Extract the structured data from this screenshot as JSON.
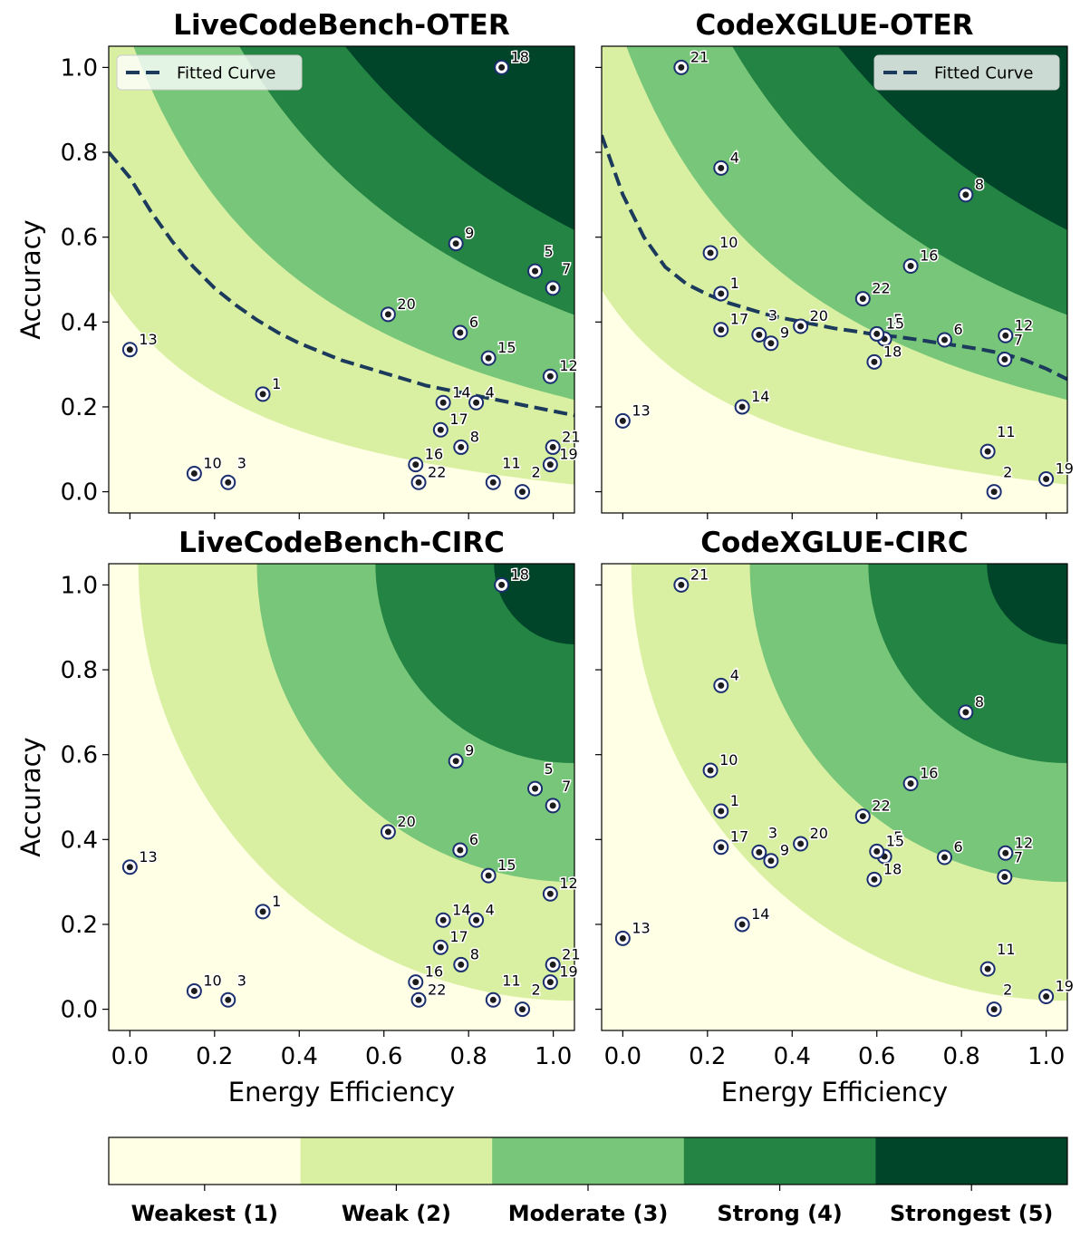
{
  "colors": {
    "levels": [
      "#ffffe5",
      "#d9f0a3",
      "#78c679",
      "#238443",
      "#004529"
    ],
    "curve": "#1b3a5c",
    "point_edge": "#1b2f6e",
    "point_fill": "#1c1c1c"
  },
  "colorbar": {
    "labels": [
      "Weakest (1)",
      "Weak (2)",
      "Moderate (3)",
      "Strong (4)",
      "Strongest (5)"
    ]
  },
  "chart_data": [
    {
      "type": "scatter",
      "title": "LiveCodeBench-OTER",
      "xlabel": "",
      "ylabel": "Accuracy",
      "xlim": [
        -0.05,
        1.05
      ],
      "ylim": [
        -0.05,
        1.05
      ],
      "xticks": [
        "",
        "",
        "",
        "",
        "",
        ""
      ],
      "yticks": [
        "0.0",
        "0.2",
        "0.4",
        "0.6",
        "0.8",
        "1.0"
      ],
      "background": "oter",
      "thresholds": [
        0.25,
        0.55,
        0.85,
        1.15
      ],
      "legend": {
        "label": "Fitted Curve",
        "placement": "top-left"
      },
      "fitted_curve": {
        "x": [
          -0.05,
          0.0,
          0.05,
          0.1,
          0.15,
          0.2,
          0.25,
          0.3,
          0.35,
          0.4,
          0.45,
          0.5,
          0.55,
          0.6,
          0.65,
          0.7,
          0.75,
          0.8,
          0.85,
          0.9,
          0.95,
          1.0,
          1.05
        ],
        "y": [
          0.8,
          0.74,
          0.66,
          0.59,
          0.53,
          0.48,
          0.44,
          0.405,
          0.375,
          0.35,
          0.33,
          0.31,
          0.295,
          0.28,
          0.265,
          0.25,
          0.24,
          0.23,
          0.22,
          0.21,
          0.2,
          0.19,
          0.18
        ]
      },
      "points": [
        {
          "label": "1",
          "x": 0.314,
          "y": 0.23
        },
        {
          "label": "2",
          "x": 0.927,
          "y": 0.0
        },
        {
          "label": "3",
          "x": 0.232,
          "y": 0.022
        },
        {
          "label": "4",
          "x": 0.818,
          "y": 0.21
        },
        {
          "label": "5",
          "x": 0.957,
          "y": 0.52
        },
        {
          "label": "6",
          "x": 0.78,
          "y": 0.375
        },
        {
          "label": "7",
          "x": 0.999,
          "y": 0.48
        },
        {
          "label": "8",
          "x": 0.782,
          "y": 0.105
        },
        {
          "label": "9",
          "x": 0.77,
          "y": 0.585
        },
        {
          "label": "10",
          "x": 0.152,
          "y": 0.043
        },
        {
          "label": "11",
          "x": 0.858,
          "y": 0.022
        },
        {
          "label": "12",
          "x": 0.993,
          "y": 0.272
        },
        {
          "label": "13",
          "x": 0.0,
          "y": 0.335
        },
        {
          "label": "14",
          "x": 0.74,
          "y": 0.21
        },
        {
          "label": "15",
          "x": 0.847,
          "y": 0.315
        },
        {
          "label": "16",
          "x": 0.675,
          "y": 0.064
        },
        {
          "label": "17",
          "x": 0.734,
          "y": 0.146
        },
        {
          "label": "18",
          "x": 0.878,
          "y": 1.0
        },
        {
          "label": "19",
          "x": 0.993,
          "y": 0.064
        },
        {
          "label": "20",
          "x": 0.61,
          "y": 0.418
        },
        {
          "label": "21",
          "x": 0.999,
          "y": 0.105
        },
        {
          "label": "22",
          "x": 0.682,
          "y": 0.022
        }
      ]
    },
    {
      "type": "scatter",
      "title": "CodeXGLUE-OTER",
      "xlabel": "",
      "ylabel": "",
      "xlim": [
        -0.05,
        1.05
      ],
      "ylim": [
        -0.05,
        1.05
      ],
      "xticks": [
        "",
        "",
        "",
        "",
        "",
        ""
      ],
      "yticks": [
        "",
        "",
        "",
        "",
        "",
        ""
      ],
      "background": "oter",
      "thresholds": [
        0.25,
        0.55,
        0.85,
        1.15
      ],
      "legend": {
        "label": "Fitted Curve",
        "placement": "top-right"
      },
      "fitted_curve": {
        "x": [
          -0.05,
          0.0,
          0.05,
          0.1,
          0.15,
          0.2,
          0.25,
          0.3,
          0.35,
          0.4,
          0.45,
          0.5,
          0.55,
          0.6,
          0.65,
          0.7,
          0.75,
          0.8,
          0.85,
          0.9,
          0.95,
          1.0,
          1.05
        ],
        "y": [
          0.84,
          0.7,
          0.6,
          0.53,
          0.49,
          0.465,
          0.445,
          0.43,
          0.415,
          0.405,
          0.395,
          0.385,
          0.378,
          0.37,
          0.365,
          0.358,
          0.35,
          0.343,
          0.335,
          0.325,
          0.31,
          0.29,
          0.265
        ]
      },
      "points": [
        {
          "label": "1",
          "x": 0.232,
          "y": 0.467
        },
        {
          "label": "2",
          "x": 0.877,
          "y": 0.0
        },
        {
          "label": "3",
          "x": 0.322,
          "y": 0.37
        },
        {
          "label": "4",
          "x": 0.232,
          "y": 0.763
        },
        {
          "label": "5",
          "x": 0.618,
          "y": 0.36
        },
        {
          "label": "6",
          "x": 0.76,
          "y": 0.358
        },
        {
          "label": "7",
          "x": 0.902,
          "y": 0.312
        },
        {
          "label": "8",
          "x": 0.81,
          "y": 0.7
        },
        {
          "label": "9",
          "x": 0.35,
          "y": 0.35
        },
        {
          "label": "10",
          "x": 0.207,
          "y": 0.563
        },
        {
          "label": "11",
          "x": 0.862,
          "y": 0.095
        },
        {
          "label": "12",
          "x": 0.904,
          "y": 0.368
        },
        {
          "label": "13",
          "x": 0.0,
          "y": 0.167
        },
        {
          "label": "14",
          "x": 0.282,
          "y": 0.2
        },
        {
          "label": "15",
          "x": 0.6,
          "y": 0.372
        },
        {
          "label": "16",
          "x": 0.68,
          "y": 0.532
        },
        {
          "label": "17",
          "x": 0.232,
          "y": 0.382
        },
        {
          "label": "18",
          "x": 0.594,
          "y": 0.306
        },
        {
          "label": "19",
          "x": 1.0,
          "y": 0.03
        },
        {
          "label": "20",
          "x": 0.42,
          "y": 0.39
        },
        {
          "label": "21",
          "x": 0.138,
          "y": 1.0
        },
        {
          "label": "22",
          "x": 0.567,
          "y": 0.455
        }
      ]
    },
    {
      "type": "scatter",
      "title": "LiveCodeBench-CIRC",
      "xlabel": "Energy Efficiency",
      "ylabel": "Accuracy",
      "xlim": [
        -0.05,
        1.05
      ],
      "ylim": [
        -0.05,
        1.05
      ],
      "xticks": [
        "0.0",
        "0.2",
        "0.4",
        "0.6",
        "0.8",
        "1.0"
      ],
      "yticks": [
        "0.0",
        "0.2",
        "0.4",
        "0.6",
        "0.8",
        "1.0"
      ],
      "background": "circ",
      "thresholds": [
        0.47,
        0.75,
        1.03,
        1.31
      ],
      "points": [
        {
          "label": "1",
          "x": 0.314,
          "y": 0.23
        },
        {
          "label": "2",
          "x": 0.927,
          "y": 0.0
        },
        {
          "label": "3",
          "x": 0.232,
          "y": 0.022
        },
        {
          "label": "4",
          "x": 0.818,
          "y": 0.21
        },
        {
          "label": "5",
          "x": 0.957,
          "y": 0.52
        },
        {
          "label": "6",
          "x": 0.78,
          "y": 0.375
        },
        {
          "label": "7",
          "x": 0.999,
          "y": 0.48
        },
        {
          "label": "8",
          "x": 0.782,
          "y": 0.105
        },
        {
          "label": "9",
          "x": 0.77,
          "y": 0.585
        },
        {
          "label": "10",
          "x": 0.152,
          "y": 0.043
        },
        {
          "label": "11",
          "x": 0.858,
          "y": 0.022
        },
        {
          "label": "12",
          "x": 0.993,
          "y": 0.272
        },
        {
          "label": "13",
          "x": 0.0,
          "y": 0.335
        },
        {
          "label": "14",
          "x": 0.74,
          "y": 0.21
        },
        {
          "label": "15",
          "x": 0.847,
          "y": 0.315
        },
        {
          "label": "16",
          "x": 0.675,
          "y": 0.064
        },
        {
          "label": "17",
          "x": 0.734,
          "y": 0.146
        },
        {
          "label": "18",
          "x": 0.878,
          "y": 1.0
        },
        {
          "label": "19",
          "x": 0.993,
          "y": 0.064
        },
        {
          "label": "20",
          "x": 0.61,
          "y": 0.418
        },
        {
          "label": "21",
          "x": 0.999,
          "y": 0.105
        },
        {
          "label": "22",
          "x": 0.682,
          "y": 0.022
        }
      ]
    },
    {
      "type": "scatter",
      "title": "CodeXGLUE-CIRC",
      "xlabel": "Energy Efficiency",
      "ylabel": "",
      "xlim": [
        -0.05,
        1.05
      ],
      "ylim": [
        -0.05,
        1.05
      ],
      "xticks": [
        "0.0",
        "0.2",
        "0.4",
        "0.6",
        "0.8",
        "1.0"
      ],
      "yticks": [
        "",
        "",
        "",
        "",
        "",
        ""
      ],
      "background": "circ",
      "thresholds": [
        0.47,
        0.75,
        1.03,
        1.31
      ],
      "points": [
        {
          "label": "1",
          "x": 0.232,
          "y": 0.467
        },
        {
          "label": "2",
          "x": 0.877,
          "y": 0.0
        },
        {
          "label": "3",
          "x": 0.322,
          "y": 0.37
        },
        {
          "label": "4",
          "x": 0.232,
          "y": 0.763
        },
        {
          "label": "5",
          "x": 0.618,
          "y": 0.36
        },
        {
          "label": "6",
          "x": 0.76,
          "y": 0.358
        },
        {
          "label": "7",
          "x": 0.902,
          "y": 0.312
        },
        {
          "label": "8",
          "x": 0.81,
          "y": 0.7
        },
        {
          "label": "9",
          "x": 0.35,
          "y": 0.35
        },
        {
          "label": "10",
          "x": 0.207,
          "y": 0.563
        },
        {
          "label": "11",
          "x": 0.862,
          "y": 0.095
        },
        {
          "label": "12",
          "x": 0.904,
          "y": 0.368
        },
        {
          "label": "13",
          "x": 0.0,
          "y": 0.167
        },
        {
          "label": "14",
          "x": 0.282,
          "y": 0.2
        },
        {
          "label": "15",
          "x": 0.6,
          "y": 0.372
        },
        {
          "label": "16",
          "x": 0.68,
          "y": 0.532
        },
        {
          "label": "17",
          "x": 0.232,
          "y": 0.382
        },
        {
          "label": "18",
          "x": 0.594,
          "y": 0.306
        },
        {
          "label": "19",
          "x": 1.0,
          "y": 0.03
        },
        {
          "label": "20",
          "x": 0.42,
          "y": 0.39
        },
        {
          "label": "21",
          "x": 0.138,
          "y": 1.0
        },
        {
          "label": "22",
          "x": 0.567,
          "y": 0.455
        }
      ]
    }
  ]
}
